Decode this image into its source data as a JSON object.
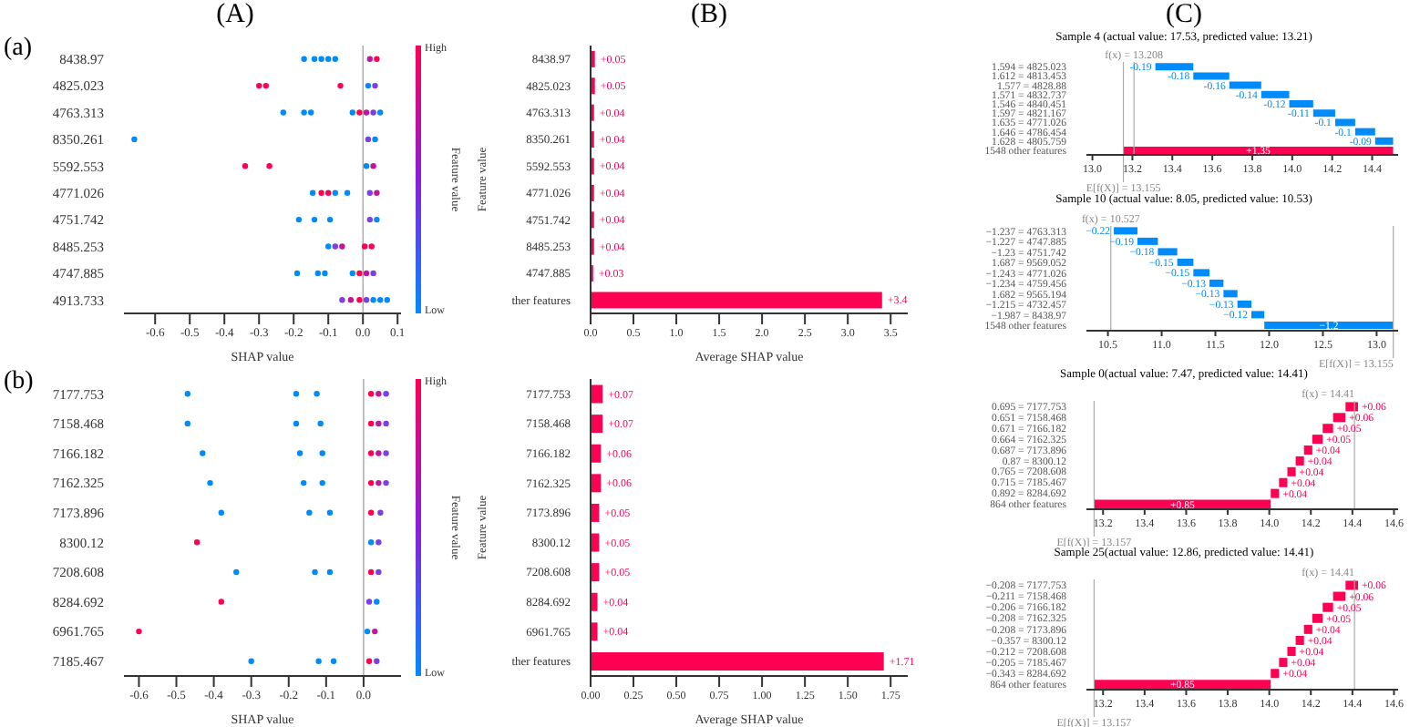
{
  "chart_data": [
    {
      "type": "scatter",
      "orientation": "horizontal",
      "title": "(A)",
      "annotations": [
        "(a)",
        "High",
        "Low"
      ],
      "marker": "circle",
      "categories": [
        "8438.97",
        "4825.023",
        "4763.313",
        "8350.261",
        "5592.553",
        "4771.026",
        "4751.742",
        "8485.253",
        "4747.885",
        "4913.733"
      ],
      "series": [
        {
          "x": [
            "8438.97",
            "8438.97",
            "8438.97",
            "8438.97",
            "8438.97",
            "8438.97",
            "8438.97"
          ],
          "values": [
            -0.17,
            -0.14,
            -0.12,
            -0.1,
            -0.08,
            0.02,
            0.04
          ],
          "colors": [
            "#008bfb",
            "#008bfb",
            "#008bfb",
            "#008bfb",
            "#008bfb",
            "#c0159d",
            "#ff0052"
          ]
        },
        {
          "x": [
            "4825.023",
            "4825.023",
            "4825.023",
            "4825.023",
            "4825.023"
          ],
          "values": [
            -0.3,
            -0.28,
            -0.065,
            0.015,
            0.035
          ],
          "colors": [
            "#ff0052",
            "#ff0052",
            "#ff0052",
            "#008bfb",
            "#7b3fe4"
          ]
        },
        {
          "x": [
            "4763.313",
            "4763.313",
            "4763.313",
            "4763.313",
            "4763.313",
            "4763.313",
            "4763.313",
            "4763.313"
          ],
          "values": [
            -0.23,
            -0.17,
            -0.15,
            -0.03,
            -0.01,
            0.01,
            0.03,
            0.05
          ],
          "colors": [
            "#008bfb",
            "#008bfb",
            "#008bfb",
            "#008bfb",
            "#ff0052",
            "#c0159d",
            "#7b3fe4",
            "#008bfb"
          ]
        },
        {
          "x": [
            "8350.261",
            "8350.261",
            "8350.261"
          ],
          "values": [
            -0.66,
            0.015,
            0.035
          ],
          "colors": [
            "#008bfb",
            "#7b3fe4",
            "#008bfb"
          ]
        },
        {
          "x": [
            "5592.553",
            "5592.553",
            "5592.553",
            "5592.553"
          ],
          "values": [
            -0.34,
            -0.27,
            0.01,
            0.03
          ],
          "colors": [
            "#ff0052",
            "#ff0052",
            "#008bfb",
            "#c0159d"
          ]
        },
        {
          "x": [
            "4771.026",
            "4771.026",
            "4771.026",
            "4771.026",
            "4771.026",
            "4771.026",
            "4771.026"
          ],
          "values": [
            -0.145,
            -0.12,
            -0.1,
            -0.08,
            -0.045,
            0.02,
            0.04
          ],
          "colors": [
            "#008bfb",
            "#ff0052",
            "#ff0052",
            "#008bfb",
            "#008bfb",
            "#7b3fe4",
            "#c0159d"
          ]
        },
        {
          "x": [
            "4751.742",
            "4751.742",
            "4751.742",
            "4751.742",
            "4751.742"
          ],
          "values": [
            -0.185,
            -0.14,
            -0.095,
            0.02,
            0.04
          ],
          "colors": [
            "#008bfb",
            "#008bfb",
            "#008bfb",
            "#7b3fe4",
            "#008bfb"
          ]
        },
        {
          "x": [
            "8485.253",
            "8485.253",
            "8485.253",
            "8485.253",
            "8485.253"
          ],
          "values": [
            -0.1,
            -0.08,
            -0.06,
            0.005,
            0.025
          ],
          "colors": [
            "#008bfb",
            "#7b3fe4",
            "#c0159d",
            "#ff0052",
            "#ff0052"
          ]
        },
        {
          "x": [
            "4747.885",
            "4747.885",
            "4747.885",
            "4747.885",
            "4747.885",
            "4747.885",
            "4747.885"
          ],
          "values": [
            -0.19,
            -0.13,
            -0.11,
            -0.03,
            -0.01,
            0.01,
            0.03
          ],
          "colors": [
            "#008bfb",
            "#008bfb",
            "#008bfb",
            "#008bfb",
            "#ff0052",
            "#c0159d",
            "#7b3fe4"
          ]
        },
        {
          "x": [
            "4913.733",
            "4913.733",
            "4913.733",
            "4913.733",
            "4913.733",
            "4913.733",
            "4913.733"
          ],
          "values": [
            -0.06,
            -0.035,
            -0.01,
            0.01,
            0.03,
            0.05,
            0.07
          ],
          "colors": [
            "#7b3fe4",
            "#c0159d",
            "#ff0052",
            "#7b3fe4",
            "#008bfb",
            "#008bfb",
            "#008bfb"
          ]
        }
      ],
      "xlim": [
        -0.69,
        0.11
      ],
      "xticks": [
        -0.6,
        -0.5,
        -0.4,
        -0.3,
        -0.2,
        -0.1,
        {
          "value": 0,
          "label": "0.0"
        },
        0.1
      ],
      "xlabel": "SHAP value",
      "clabel": "Feature value",
      "ref_lines": [
        {
          "axis": "x",
          "value": 0,
          "color": "#999999"
        }
      ]
    },
    {
      "type": "bar",
      "orientation": "horizontal",
      "title": "(B)",
      "categories": [
        "8438.97",
        "4825.023",
        "4763.313",
        "8350.261",
        "5592.553",
        "4771.026",
        "4751.742",
        "8485.253",
        "4747.885",
        "ther features"
      ],
      "values": [
        0.05,
        0.05,
        0.04,
        0.04,
        0.04,
        0.04,
        0.04,
        0.04,
        0.03,
        3.4
      ],
      "color": "#ff0052",
      "value_labels": [
        "+0.05",
        "+0.05",
        "+0.04",
        "+0.04",
        "+0.04",
        "+0.04",
        "+0.04",
        "+0.04",
        "+0.03",
        "+3.4"
      ],
      "xlim": [
        0,
        3.7
      ],
      "xticks": [
        {
          "value": 0,
          "label": "0.0"
        },
        0.5,
        {
          "value": 1,
          "label": "1.0"
        },
        1.5,
        {
          "value": 2,
          "label": "2.0"
        },
        2.5,
        {
          "value": 3,
          "label": "3.0"
        },
        3.5
      ],
      "xlabel": "Average SHAP value",
      "ylabel": "Feature value"
    },
    {
      "type": "bar",
      "orientation": "horizontal",
      "title": "(C)",
      "subtitle": "Sample 4 (actual value: 17.53, predicted value: 13.21)",
      "categories": [
        "1.594 = 4825.023",
        "1.612 = 4813.453",
        "1.577 = 4828.88",
        "1.571 = 4832.737",
        "1.546 = 4840.451",
        "1.597 = 4821.167",
        "1.635 = 4771.026",
        "1.646 = 4786.454",
        "1.628 = 4805.759",
        "1548 other features"
      ],
      "values": [
        -0.19,
        -0.18,
        -0.16,
        -0.14,
        -0.12,
        -0.11,
        -0.1,
        -0.1,
        -0.09,
        1.35
      ],
      "base": [
        13.505,
        13.685,
        13.845,
        13.985,
        14.105,
        14.215,
        14.315,
        14.415,
        14.505,
        13.155
      ],
      "colors": [
        "#008bfb",
        "#008bfb",
        "#008bfb",
        "#008bfb",
        "#008bfb",
        "#008bfb",
        "#008bfb",
        "#008bfb",
        "#008bfb",
        "#ff0052"
      ],
      "value_labels": [
        "-0.19",
        "-0.18",
        "-0.16",
        "-0.14",
        "-0.12",
        "-0.11",
        "-0.1",
        "-0.1",
        "-0.09",
        "+1.35"
      ],
      "xlim": [
        12.97,
        14.53
      ],
      "xticks": [
        {
          "value": 13,
          "label": "13.0"
        },
        13.2,
        13.4,
        13.6,
        13.8,
        {
          "value": 14,
          "label": "14.0"
        },
        14.2,
        14.4
      ],
      "ref_lines": [
        {
          "axis": "x",
          "value": 13.208,
          "label": "f(x) = 13.208"
        },
        {
          "axis": "x",
          "value": 13.155,
          "label": "E[f(X)] = 13.155"
        }
      ]
    },
    {
      "type": "bar",
      "orientation": "horizontal",
      "title": "Sample 10 (actual value: 8.05, predicted value: 10.53)",
      "categories": [
        "−1.237 = 4763.313",
        "−1.227 = 4747.885",
        "−1.23 = 4751.742",
        "1.687 = 9569.052",
        "−1.243 = 4771.026",
        "−1.234 = 4759.456",
        "1.682 = 9565.194",
        "−1.215 = 4732.457",
        "−1.987 = 8438.97",
        "1548 other features"
      ],
      "values": [
        -0.22,
        -0.19,
        -0.18,
        -0.15,
        -0.15,
        -0.13,
        -0.13,
        -0.13,
        -0.12,
        -1.2
      ],
      "base": [
        10.775,
        10.965,
        11.145,
        11.295,
        11.445,
        11.575,
        11.705,
        11.835,
        11.955,
        13.155
      ],
      "colors": [
        "#008bfb",
        "#008bfb",
        "#008bfb",
        "#008bfb",
        "#008bfb",
        "#008bfb",
        "#008bfb",
        "#008bfb",
        "#008bfb",
        "#008bfb"
      ],
      "value_labels": [
        "−0.22",
        "−0.19",
        "−0.18",
        "−0.15",
        "−0.15",
        "−0.13",
        "−0.13",
        "−0.13",
        "−0.12",
        "−1.2"
      ],
      "xlim": [
        10.3,
        13.2
      ],
      "xticks": [
        10.5,
        {
          "value": 11,
          "label": "11.0"
        },
        11.5,
        {
          "value": 12,
          "label": "12.0"
        },
        12.5,
        {
          "value": 13,
          "label": "13.0"
        }
      ],
      "ref_lines": [
        {
          "axis": "x",
          "value": 10.527,
          "label": "f(x) = 10.527"
        },
        {
          "axis": "x",
          "value": 13.155,
          "label": "E[f(X)] = 13.155"
        }
      ]
    },
    {
      "type": "scatter",
      "orientation": "horizontal",
      "annotations": [
        "(b)",
        "High",
        "Low"
      ],
      "marker": "circle",
      "categories": [
        "7177.753",
        "7158.468",
        "7166.182",
        "7162.325",
        "7173.896",
        "8300.12",
        "7208.608",
        "8284.692",
        "6961.765",
        "7185.467"
      ],
      "series": [
        {
          "x": [
            "7177.753",
            "7177.753",
            "7177.753",
            "7177.753",
            "7177.753",
            "7177.753"
          ],
          "values": [
            -0.47,
            -0.18,
            -0.125,
            0.02,
            0.04,
            0.06
          ],
          "colors": [
            "#008bfb",
            "#008bfb",
            "#008bfb",
            "#ff0052",
            "#c0159d",
            "#7b3fe4"
          ]
        },
        {
          "x": [
            "7158.468",
            "7158.468",
            "7158.468",
            "7158.468",
            "7158.468",
            "7158.468"
          ],
          "values": [
            -0.47,
            -0.18,
            -0.115,
            0.02,
            0.04,
            0.06
          ],
          "colors": [
            "#008bfb",
            "#008bfb",
            "#008bfb",
            "#ff0052",
            "#c0159d",
            "#7b3fe4"
          ]
        },
        {
          "x": [
            "7166.182",
            "7166.182",
            "7166.182",
            "7166.182",
            "7166.182",
            "7166.182"
          ],
          "values": [
            -0.43,
            -0.17,
            -0.11,
            0.02,
            0.04,
            0.06
          ],
          "colors": [
            "#008bfb",
            "#008bfb",
            "#008bfb",
            "#ff0052",
            "#c0159d",
            "#7b3fe4"
          ]
        },
        {
          "x": [
            "7162.325",
            "7162.325",
            "7162.325",
            "7162.325",
            "7162.325",
            "7162.325"
          ],
          "values": [
            -0.41,
            -0.16,
            -0.11,
            0.02,
            0.04,
            0.06
          ],
          "colors": [
            "#008bfb",
            "#008bfb",
            "#008bfb",
            "#ff0052",
            "#c0159d",
            "#7b3fe4"
          ]
        },
        {
          "x": [
            "7173.896",
            "7173.896",
            "7173.896",
            "7173.896",
            "7173.896"
          ],
          "values": [
            -0.38,
            -0.145,
            -0.09,
            0.02,
            0.045
          ],
          "colors": [
            "#008bfb",
            "#008bfb",
            "#008bfb",
            "#ff0052",
            "#7b3fe4"
          ]
        },
        {
          "x": [
            "8300.12",
            "8300.12",
            "8300.12"
          ],
          "values": [
            -0.445,
            0.02,
            0.04
          ],
          "colors": [
            "#ff0052",
            "#008bfb",
            "#7b3fe4"
          ]
        },
        {
          "x": [
            "7208.608",
            "7208.608",
            "7208.608",
            "7208.608",
            "7208.608"
          ],
          "values": [
            -0.34,
            -0.13,
            -0.09,
            0.02,
            0.04
          ],
          "colors": [
            "#008bfb",
            "#008bfb",
            "#008bfb",
            "#ff0052",
            "#7b3fe4"
          ]
        },
        {
          "x": [
            "8284.692",
            "8284.692",
            "8284.692"
          ],
          "values": [
            -0.38,
            0.015,
            0.035
          ],
          "colors": [
            "#ff0052",
            "#7b3fe4",
            "#008bfb"
          ]
        },
        {
          "x": [
            "6961.765",
            "6961.765",
            "6961.765"
          ],
          "values": [
            -0.6,
            0.01,
            0.03
          ],
          "colors": [
            "#ff0052",
            "#008bfb",
            "#c0159d"
          ]
        },
        {
          "x": [
            "7185.467",
            "7185.467",
            "7185.467",
            "7185.467",
            "7185.467"
          ],
          "values": [
            -0.3,
            -0.12,
            -0.08,
            0.015,
            0.035
          ],
          "colors": [
            "#008bfb",
            "#008bfb",
            "#008bfb",
            "#ff0052",
            "#7b3fe4"
          ]
        }
      ],
      "xlim": [
        -0.64,
        0.1
      ],
      "xticks": [
        -0.6,
        -0.5,
        -0.4,
        -0.3,
        -0.2,
        -0.1,
        {
          "value": 0,
          "label": "0.0"
        }
      ],
      "xlabel": "SHAP value",
      "clabel": "Feature value",
      "ref_lines": [
        {
          "axis": "x",
          "value": 0,
          "color": "#999999"
        }
      ]
    },
    {
      "type": "bar",
      "orientation": "horizontal",
      "categories": [
        "7177.753",
        "7158.468",
        "7166.182",
        "7162.325",
        "7173.896",
        "8300.12",
        "7208.608",
        "8284.692",
        "6961.765",
        "ther features"
      ],
      "values": [
        0.07,
        0.07,
        0.06,
        0.06,
        0.05,
        0.05,
        0.05,
        0.04,
        0.04,
        1.71
      ],
      "color": "#ff0052",
      "value_labels": [
        "+0.07",
        "+0.07",
        "+0.06",
        "+0.06",
        "+0.05",
        "+0.05",
        "+0.05",
        "+0.04",
        "+0.04",
        "+1.71"
      ],
      "xlim": [
        0,
        1.85
      ],
      "xticks": [
        {
          "value": 0,
          "label": "0.00"
        },
        0.25,
        {
          "value": 0.5,
          "label": "0.50"
        },
        0.75,
        {
          "value": 1,
          "label": "1.00"
        },
        1.25,
        {
          "value": 1.5,
          "label": "1.50"
        },
        1.75
      ],
      "xlabel": "Average SHAP value",
      "ylabel": "Feature value"
    },
    {
      "type": "bar",
      "orientation": "horizontal",
      "title": "Sample 0(actual value: 7.47, predicted value: 14.41)",
      "categories": [
        "0.695 = 7177.753",
        "0.651 = 7158.468",
        "0.671 = 7166.182",
        "0.664 = 7162.325",
        "0.687 = 7173.896",
        "0.87 = 8300.12",
        "0.765 = 7208.608",
        "0.715 = 7185.467",
        "0.892 = 8284.692",
        "864 other features"
      ],
      "values": [
        0.06,
        0.06,
        0.05,
        0.05,
        0.04,
        0.04,
        0.04,
        0.04,
        0.04,
        0.85
      ],
      "base": [
        14.367,
        14.307,
        14.257,
        14.207,
        14.167,
        14.127,
        14.087,
        14.047,
        14.007,
        13.157
      ],
      "colors": [
        "#ff0052",
        "#ff0052",
        "#ff0052",
        "#ff0052",
        "#ff0052",
        "#ff0052",
        "#ff0052",
        "#ff0052",
        "#ff0052",
        "#ff0052"
      ],
      "value_labels": [
        "+0.06",
        "+0.06",
        "+0.05",
        "+0.05",
        "+0.04",
        "+0.04",
        "+0.04",
        "+0.04",
        "+0.04",
        "+0.85"
      ],
      "xlim": [
        13.12,
        14.62
      ],
      "xticks": [
        13.2,
        13.4,
        13.6,
        13.8,
        {
          "value": 14,
          "label": "14.0"
        },
        14.2,
        14.4,
        14.6
      ],
      "ref_lines": [
        {
          "axis": "x",
          "value": 14.41,
          "label": "f(x) = 14.41"
        },
        {
          "axis": "x",
          "value": 13.157,
          "label": "E[f(X)] = 13.157"
        }
      ]
    },
    {
      "type": "bar",
      "orientation": "horizontal",
      "title": "Sample 25(actual value: 12.86, predicted value: 14.41)",
      "categories": [
        "−0.208 = 7177.753",
        "−0.211 = 7158.468",
        "−0.206 = 7166.182",
        "−0.208 = 7162.325",
        "−0.208 = 7173.896",
        "−0.357 = 8300.12",
        "−0.212 = 7208.608",
        "−0.205 = 7185.467",
        "−0.343 = 8284.692",
        "864 other features"
      ],
      "values": [
        0.06,
        0.06,
        0.05,
        0.05,
        0.04,
        0.04,
        0.04,
        0.04,
        0.04,
        0.85
      ],
      "base": [
        14.367,
        14.307,
        14.257,
        14.207,
        14.167,
        14.127,
        14.087,
        14.047,
        14.007,
        13.157
      ],
      "colors": [
        "#ff0052",
        "#ff0052",
        "#ff0052",
        "#ff0052",
        "#ff0052",
        "#ff0052",
        "#ff0052",
        "#ff0052",
        "#ff0052",
        "#ff0052"
      ],
      "value_labels": [
        "+0.06",
        "+0.06",
        "+0.05",
        "+0.05",
        "+0.04",
        "+0.04",
        "+0.04",
        "+0.04",
        "+0.04",
        "+0.85"
      ],
      "xlim": [
        13.12,
        14.62
      ],
      "xticks": [
        13.2,
        13.4,
        13.6,
        13.8,
        {
          "value": 14,
          "label": "14.0"
        },
        14.2,
        14.4,
        14.6
      ],
      "ref_lines": [
        {
          "axis": "x",
          "value": 14.41,
          "label": "f(x) = 14.41"
        },
        {
          "axis": "x",
          "value": 13.157,
          "label": "E[f(X)] = 13.157"
        }
      ]
    }
  ]
}
